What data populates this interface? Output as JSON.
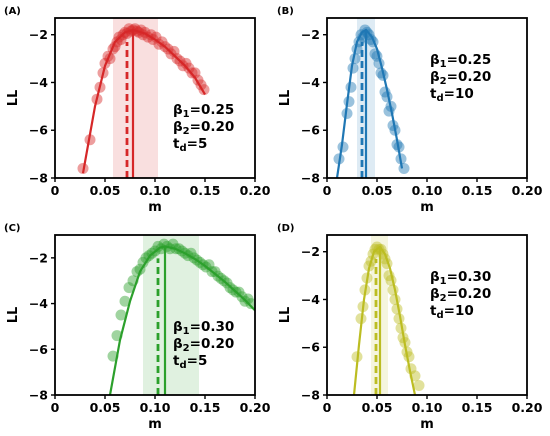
{
  "chart_data": [
    {
      "panel_label": "(A)",
      "type": "scatter",
      "color": "#d62728",
      "xlabel": "m",
      "ylabel": "LL",
      "xlim": [
        0,
        0.2
      ],
      "ylim": [
        -8,
        -1.3
      ],
      "xticks": [
        "0",
        "0.05",
        "0.10",
        "0.15",
        "0.20"
      ],
      "yticks": [
        "-8",
        "-6",
        "-4",
        "-2"
      ],
      "band": [
        0.058,
        0.103
      ],
      "dashed_line_x": 0.072,
      "solid_line_x": 0.078,
      "params": [
        "β₁=0.25",
        "β₂=0.20",
        "t_d=5"
      ],
      "points": {
        "x": [
          0.028,
          0.035,
          0.042,
          0.045,
          0.048,
          0.05,
          0.053,
          0.055,
          0.058,
          0.06,
          0.062,
          0.064,
          0.066,
          0.068,
          0.07,
          0.072,
          0.074,
          0.076,
          0.078,
          0.08,
          0.082,
          0.084,
          0.086,
          0.088,
          0.09,
          0.093,
          0.096,
          0.098,
          0.101,
          0.104,
          0.107,
          0.11,
          0.113,
          0.116,
          0.119,
          0.122,
          0.125,
          0.128,
          0.131,
          0.134,
          0.137,
          0.14,
          0.143,
          0.146,
          0.149
        ],
        "y": [
          -7.6,
          -6.4,
          -4.7,
          -4.2,
          -3.6,
          -3.2,
          -2.9,
          -3.0,
          -2.6,
          -2.5,
          -2.3,
          -2.1,
          -2.2,
          -2.0,
          -1.9,
          -1.95,
          -1.75,
          -1.85,
          -1.8,
          -1.75,
          -1.85,
          -1.9,
          -1.8,
          -2.0,
          -1.9,
          -2.1,
          -2.0,
          -2.2,
          -2.1,
          -2.4,
          -2.3,
          -2.5,
          -2.6,
          -2.8,
          -2.7,
          -3.0,
          -3.1,
          -3.3,
          -3.2,
          -3.4,
          -3.6,
          -3.6,
          -3.9,
          -4.1,
          -4.3
        ]
      },
      "fit": {
        "x": [
          0.028,
          0.04,
          0.05,
          0.06,
          0.07,
          0.078,
          0.09,
          0.1,
          0.11,
          0.12,
          0.13,
          0.14,
          0.15
        ],
        "y": [
          -7.8,
          -5.0,
          -3.3,
          -2.3,
          -1.9,
          -1.8,
          -1.95,
          -2.2,
          -2.5,
          -2.9,
          -3.3,
          -3.8,
          -4.5
        ]
      }
    },
    {
      "panel_label": "(B)",
      "type": "scatter",
      "color": "#1f77b4",
      "xlabel": "m",
      "ylabel": "LL",
      "xlim": [
        0,
        0.2
      ],
      "ylim": [
        -8,
        -1.3
      ],
      "xticks": [
        "0",
        "0.05",
        "0.10",
        "0.15",
        "0.20"
      ],
      "yticks": [
        "-8",
        "-6",
        "-4",
        "-2"
      ],
      "band": [
        0.03,
        0.048
      ],
      "dashed_line_x": 0.035,
      "solid_line_x": 0.039,
      "params": [
        "β₁=0.25",
        "β₂=0.20",
        "t_d=10"
      ],
      "points": {
        "x": [
          0.012,
          0.016,
          0.02,
          0.022,
          0.024,
          0.026,
          0.028,
          0.03,
          0.032,
          0.034,
          0.036,
          0.038,
          0.04,
          0.042,
          0.044,
          0.046,
          0.048,
          0.05,
          0.052,
          0.054,
          0.056,
          0.058,
          0.06,
          0.062,
          0.064,
          0.066,
          0.068,
          0.07,
          0.072,
          0.074,
          0.077
        ],
        "y": [
          -7.2,
          -6.7,
          -5.3,
          -4.8,
          -4.2,
          -3.4,
          -3.0,
          -2.6,
          -2.3,
          -2.0,
          -2.1,
          -1.8,
          -1.9,
          -2.0,
          -2.2,
          -2.3,
          -2.8,
          -2.9,
          -3.2,
          -3.6,
          -3.7,
          -4.4,
          -4.6,
          -5.2,
          -5.0,
          -5.8,
          -6.0,
          -6.6,
          -6.7,
          -7.2,
          -7.6
        ]
      },
      "fit": {
        "x": [
          0.01,
          0.015,
          0.02,
          0.025,
          0.03,
          0.035,
          0.039,
          0.045,
          0.05,
          0.055,
          0.06,
          0.065,
          0.07,
          0.075
        ],
        "y": [
          -8.0,
          -6.6,
          -4.9,
          -3.3,
          -2.3,
          -1.9,
          -1.8,
          -2.1,
          -2.6,
          -3.4,
          -4.3,
          -5.3,
          -6.4,
          -7.6
        ]
      }
    },
    {
      "panel_label": "(C)",
      "type": "scatter",
      "color": "#2ca02c",
      "xlabel": "m",
      "ylabel": "LL",
      "xlim": [
        0,
        0.2
      ],
      "ylim": [
        -8,
        -1.0
      ],
      "xticks": [
        "0",
        "0.05",
        "0.10",
        "0.15",
        "0.20"
      ],
      "yticks": [
        "-8",
        "-6",
        "-4",
        "-2"
      ],
      "band": [
        0.088,
        0.144
      ],
      "dashed_line_x": 0.103,
      "solid_line_x": 0.11,
      "params": [
        "β₁=0.30",
        "β₂=0.20",
        "t_d=5"
      ],
      "points": {
        "x": [
          0.058,
          0.062,
          0.066,
          0.07,
          0.074,
          0.078,
          0.082,
          0.085,
          0.088,
          0.091,
          0.094,
          0.097,
          0.1,
          0.103,
          0.106,
          0.109,
          0.112,
          0.115,
          0.118,
          0.121,
          0.124,
          0.127,
          0.13,
          0.133,
          0.136,
          0.139,
          0.142,
          0.145,
          0.148,
          0.151,
          0.154,
          0.157,
          0.16,
          0.163,
          0.166,
          0.169,
          0.172,
          0.175,
          0.178,
          0.181,
          0.184,
          0.187,
          0.19,
          0.193,
          0.196
        ],
        "y": [
          -6.3,
          -5.4,
          -4.5,
          -3.9,
          -3.3,
          -3.0,
          -2.6,
          -2.5,
          -2.2,
          -2.0,
          -1.9,
          -1.8,
          -1.7,
          -1.5,
          -1.6,
          -1.4,
          -1.5,
          -1.6,
          -1.4,
          -1.6,
          -1.6,
          -1.7,
          -1.8,
          -1.9,
          -1.8,
          -2.0,
          -2.1,
          -2.2,
          -2.3,
          -2.4,
          -2.3,
          -2.6,
          -2.6,
          -2.8,
          -2.9,
          -3.0,
          -3.1,
          -3.3,
          -3.4,
          -3.5,
          -3.5,
          -3.7,
          -3.9,
          -3.8,
          -4.0
        ]
      },
      "fit": {
        "x": [
          0.055,
          0.065,
          0.075,
          0.085,
          0.095,
          0.105,
          0.11,
          0.12,
          0.13,
          0.14,
          0.15,
          0.16,
          0.17,
          0.18,
          0.19,
          0.2
        ],
        "y": [
          -8.0,
          -5.6,
          -3.9,
          -2.6,
          -1.9,
          -1.55,
          -1.5,
          -1.6,
          -1.8,
          -2.05,
          -2.35,
          -2.7,
          -3.05,
          -3.45,
          -3.85,
          -4.3
        ]
      }
    },
    {
      "panel_label": "(D)",
      "type": "scatter",
      "color": "#bcbd22",
      "xlabel": "m",
      "ylabel": "LL",
      "xlim": [
        0,
        0.2
      ],
      "ylim": [
        -8,
        -1.3
      ],
      "xticks": [
        "0",
        "0.05",
        "0.10",
        "0.15",
        "0.20"
      ],
      "yticks": [
        "-8",
        "-6",
        "-4",
        "-2"
      ],
      "band": [
        0.044,
        0.061
      ],
      "dashed_line_x": 0.049,
      "solid_line_x": 0.053,
      "params": [
        "β₁=0.30",
        "β₂=0.20",
        "t_d=10"
      ],
      "points": {
        "x": [
          0.03,
          0.034,
          0.036,
          0.038,
          0.04,
          0.042,
          0.044,
          0.046,
          0.048,
          0.05,
          0.052,
          0.054,
          0.056,
          0.058,
          0.06,
          0.062,
          0.064,
          0.066,
          0.068,
          0.07,
          0.072,
          0.074,
          0.076,
          0.078,
          0.08,
          0.082,
          0.084,
          0.088,
          0.092
        ],
        "y": [
          -6.4,
          -4.8,
          -4.3,
          -3.6,
          -3.1,
          -2.6,
          -2.4,
          -2.1,
          -1.9,
          -1.8,
          -1.9,
          -1.9,
          -2.1,
          -2.3,
          -2.5,
          -3.0,
          -3.2,
          -3.6,
          -4.0,
          -4.4,
          -4.8,
          -5.2,
          -5.6,
          -5.8,
          -6.2,
          -6.4,
          -6.9,
          -7.2,
          -7.6
        ]
      },
      "fit": {
        "x": [
          0.027,
          0.032,
          0.037,
          0.042,
          0.047,
          0.053,
          0.058,
          0.063,
          0.068,
          0.073,
          0.078,
          0.083,
          0.088
        ],
        "y": [
          -8.0,
          -5.9,
          -4.0,
          -2.7,
          -2.0,
          -1.8,
          -2.1,
          -2.7,
          -3.6,
          -4.7,
          -5.9,
          -7.0,
          -8.0
        ]
      }
    }
  ]
}
